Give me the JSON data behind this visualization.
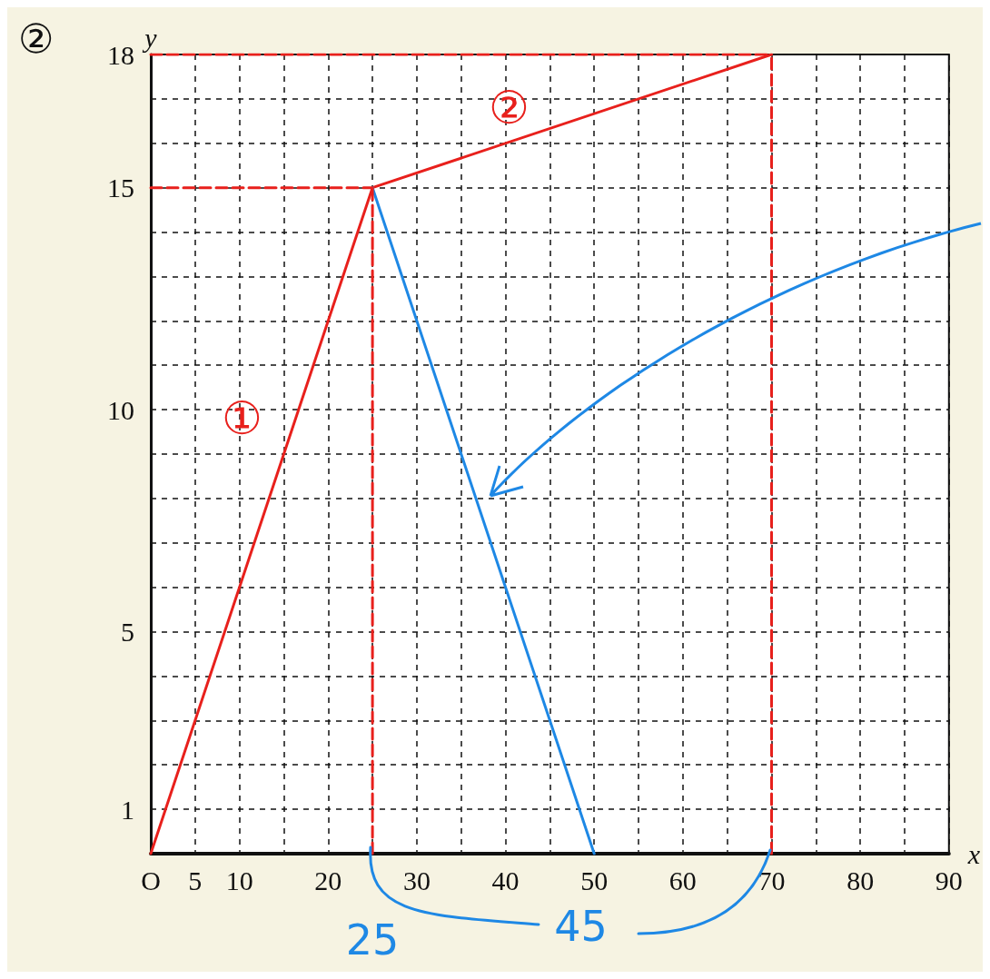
{
  "chart_data": {
    "type": "line",
    "xlabel": "x",
    "ylabel": "y",
    "xlim": [
      0,
      90
    ],
    "ylim": [
      0,
      18
    ],
    "xticks": [
      {
        "value": 0,
        "label": "O"
      },
      5,
      10,
      {
        "value": 15,
        "label": null
      },
      20,
      {
        "value": 25,
        "label": null
      },
      30,
      {
        "value": 35,
        "label": null
      },
      40,
      {
        "value": 45,
        "label": null
      },
      50,
      {
        "value": 55,
        "label": null
      },
      60,
      {
        "value": 65,
        "label": null
      },
      70,
      {
        "value": 75,
        "label": null
      },
      80,
      {
        "value": 85,
        "label": null
      },
      90
    ],
    "yticks": [
      {
        "value": 0,
        "label": null
      },
      1,
      {
        "value": 2,
        "label": null
      },
      {
        "value": 3,
        "label": null
      },
      {
        "value": 4,
        "label": null
      },
      5,
      {
        "value": 6,
        "label": null
      },
      {
        "value": 7,
        "label": null
      },
      {
        "value": 8,
        "label": null
      },
      {
        "value": 9,
        "label": null
      },
      10,
      {
        "value": 11,
        "label": null
      },
      {
        "value": 12,
        "label": null
      },
      {
        "value": 13,
        "label": null
      },
      {
        "value": 14,
        "label": null
      },
      15,
      {
        "value": 16,
        "label": null
      },
      {
        "value": 17,
        "label": null
      },
      18
    ],
    "grid": true,
    "marker": "none",
    "line_style": "solid",
    "series": [
      {
        "x": [
          0,
          25,
          70
        ],
        "values": [
          0,
          15,
          18
        ],
        "color": "#e8201c"
      },
      {
        "x": [
          25,
          50
        ],
        "values": [
          15,
          0
        ],
        "color": "#1e88e5"
      },
      {
        "x": [
          0,
          25
        ],
        "values": [
          15,
          15
        ],
        "color": "#e8201c",
        "line_style": "dashed"
      },
      {
        "x": [
          25,
          25
        ],
        "values": [
          0,
          15
        ],
        "color": "#e8201c",
        "line_style": "dashed"
      },
      {
        "x": [
          0,
          70
        ],
        "values": [
          18,
          18
        ],
        "color": "#e8201c",
        "line_style": "dashed"
      },
      {
        "x": [
          70,
          70
        ],
        "values": [
          0,
          18
        ],
        "color": "#e8201c",
        "line_style": "dashed"
      }
    ],
    "annotations": [
      "②",
      "①",
      "②",
      {
        "text": "25",
        "x": 25,
        "y": 0
      },
      {
        "text": "45",
        "x": 70,
        "y": 0
      }
    ]
  }
}
